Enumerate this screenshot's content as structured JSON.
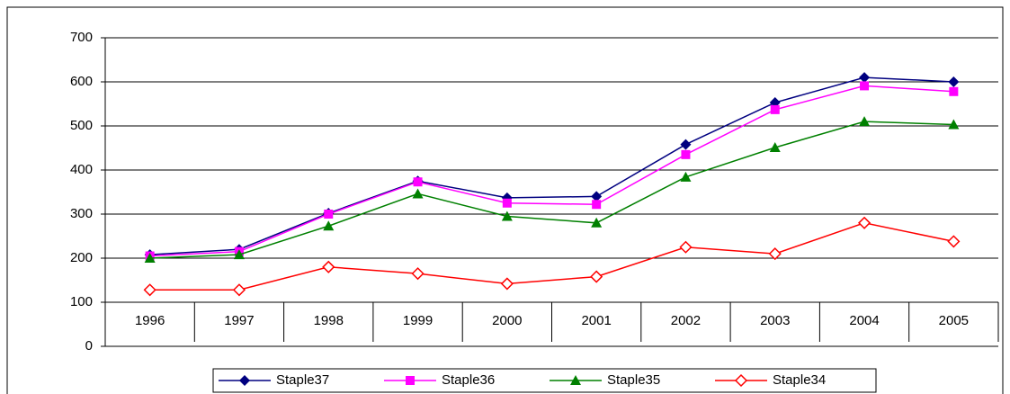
{
  "chart_data": {
    "type": "line",
    "categories": [
      "1996",
      "1997",
      "1998",
      "1999",
      "2000",
      "2001",
      "2002",
      "2003",
      "2004",
      "2005"
    ],
    "series": [
      {
        "name": "Staple37",
        "color": "#000080",
        "marker": "diamond",
        "values": [
          208,
          220,
          302,
          375,
          337,
          340,
          458,
          553,
          610,
          600
        ]
      },
      {
        "name": "Staple36",
        "color": "#ff00ff",
        "marker": "square",
        "values": [
          205,
          215,
          300,
          373,
          325,
          322,
          435,
          537,
          591,
          578
        ]
      },
      {
        "name": "Staple35",
        "color": "#008000",
        "marker": "triangle",
        "values": [
          200,
          208,
          273,
          346,
          295,
          280,
          384,
          451,
          510,
          503
        ]
      },
      {
        "name": "Staple34",
        "color": "#ff0000",
        "marker": "open-diamond",
        "values": [
          128,
          128,
          180,
          165,
          142,
          158,
          225,
          210,
          280,
          238
        ]
      }
    ],
    "ylim": [
      0,
      700
    ],
    "yticks": [
      0,
      100,
      200,
      300,
      400,
      500,
      600,
      700
    ],
    "x_axis_crosses": 100,
    "grid": true,
    "legend": "bottom"
  }
}
